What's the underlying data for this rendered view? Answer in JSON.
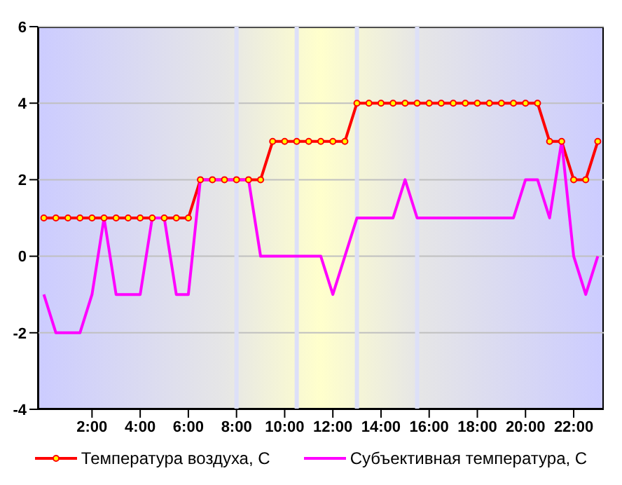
{
  "chart_data": {
    "type": "line",
    "x": [
      0,
      0.5,
      1,
      1.5,
      2,
      2.5,
      3,
      3.5,
      4,
      4.5,
      5,
      5.5,
      6,
      6.5,
      7,
      7.5,
      8,
      8.5,
      9,
      9.5,
      10,
      10.5,
      11,
      11.5,
      12,
      12.5,
      13,
      13.5,
      14,
      14.5,
      15,
      15.5,
      16,
      16.5,
      17,
      17.5,
      18,
      18.5,
      19,
      19.5,
      20,
      20.5,
      21,
      21.5,
      22,
      22.5,
      23
    ],
    "series": [
      {
        "name": "Температура воздуха, С",
        "color": "#ff0000",
        "marker": "circle",
        "values": [
          1,
          1,
          1,
          1,
          1,
          1,
          1,
          1,
          1,
          1,
          1,
          1,
          1,
          2,
          2,
          2,
          2,
          2,
          2,
          3,
          3,
          3,
          3,
          3,
          3,
          3,
          4,
          4,
          4,
          4,
          4,
          4,
          4,
          4,
          4,
          4,
          4,
          4,
          4,
          4,
          4,
          4,
          3,
          3,
          2,
          2,
          3
        ]
      },
      {
        "name": "Субъективная температура, С",
        "color": "#ff00ff",
        "marker": "none",
        "values": [
          -1,
          -2,
          -2,
          -2,
          -1,
          1,
          -1,
          -1,
          -1,
          1,
          1,
          -1,
          -1,
          2,
          2,
          2,
          2,
          2,
          0,
          0,
          0,
          0,
          0,
          0,
          -1,
          0,
          1,
          1,
          1,
          1,
          2,
          1,
          1,
          1,
          1,
          1,
          1,
          1,
          1,
          1,
          2,
          2,
          1,
          3,
          0,
          -1,
          0
        ]
      }
    ],
    "xlim": [
      -0.25,
      23.25
    ],
    "xticks": [
      {
        "value": 2,
        "label": "2:00"
      },
      {
        "value": 4,
        "label": "4:00"
      },
      {
        "value": 6,
        "label": "6:00"
      },
      {
        "value": 8,
        "label": "8:00"
      },
      {
        "value": 10,
        "label": "10:00"
      },
      {
        "value": 12,
        "label": "12:00"
      },
      {
        "value": 14,
        "label": "14:00"
      },
      {
        "value": 16,
        "label": "16:00"
      },
      {
        "value": 18,
        "label": "18:00"
      },
      {
        "value": 20,
        "label": "20:00"
      },
      {
        "value": 22,
        "label": "22:00"
      }
    ],
    "ylim": [
      -4,
      6
    ],
    "yticks": [
      -4,
      -2,
      0,
      2,
      4,
      6
    ],
    "ref_lines": [
      {
        "axis": "x",
        "value": 8,
        "color": "#dde0f8"
      },
      {
        "axis": "x",
        "value": 10.5,
        "color": "#dde0f8"
      },
      {
        "axis": "x",
        "value": 13,
        "color": "#dde0f8"
      },
      {
        "axis": "x",
        "value": 15.5,
        "color": "#dde0f8"
      }
    ],
    "grid": "y",
    "legend": "bottom",
    "line_style": "solid"
  }
}
